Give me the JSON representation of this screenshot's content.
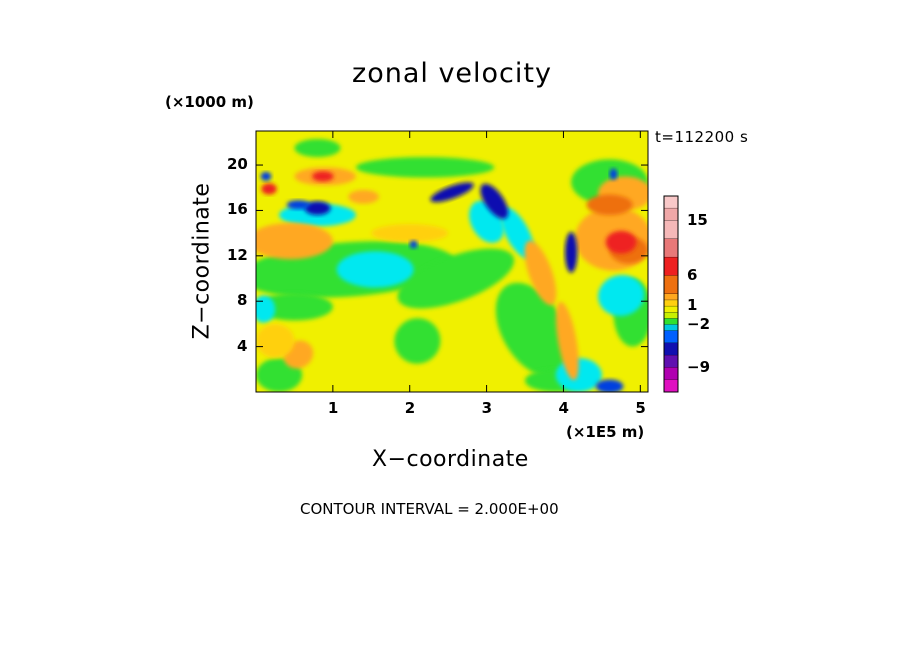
{
  "chart_data": {
    "type": "heatmap",
    "title": "zonal velocity",
    "xlabel": "X−coordinate",
    "ylabel": "Z−coordinate",
    "x_unit_label": "(×1E5 m)",
    "z_unit_label": "(×1000 m)",
    "time_label": "t=112200 s",
    "contour_interval_label": "CONTOUR INTERVAL = 2.000E+00",
    "xlim": [
      0,
      5.1
    ],
    "ylim": [
      0,
      23
    ],
    "x_ticks": [
      1,
      2,
      3,
      4,
      5
    ],
    "z_ticks": [
      4,
      8,
      12,
      16,
      20
    ],
    "colorbar": {
      "levels": [
        {
          "value": 19,
          "color": "#f8c8c8"
        },
        {
          "value": 17,
          "color": "#f0a8a8"
        },
        {
          "value": 15,
          "color": "#f5b8b8"
        },
        {
          "value": 12,
          "color": "#e87878"
        },
        {
          "value": 9,
          "color": "#ee2020"
        },
        {
          "value": 6,
          "color": "#ee7010"
        },
        {
          "value": 3,
          "color": "#ffa820"
        },
        {
          "value": 2,
          "color": "#ffd010"
        },
        {
          "value": 1,
          "color": "#f0f000"
        },
        {
          "value": 0,
          "color": "#c8f000"
        },
        {
          "value": -1,
          "color": "#30e030"
        },
        {
          "value": -2,
          "color": "#00c8e0"
        },
        {
          "value": -3,
          "color": "#0060ff"
        },
        {
          "value": -5,
          "color": "#1010b0"
        },
        {
          "value": -7,
          "color": "#6010b0"
        },
        {
          "value": -9,
          "color": "#b000b0"
        },
        {
          "value": -11,
          "color": "#e010c0"
        },
        {
          "value": -13,
          "color": "#ff20b0"
        }
      ],
      "tick_labels": [
        "15",
        "6",
        "1",
        "−2",
        "−9"
      ],
      "tick_values": [
        15,
        6,
        1,
        -2,
        -9
      ]
    },
    "field_colors": {
      "yellow": "#f0f000",
      "green": "#30e030",
      "cyan": "#00e8f0",
      "orange": "#ffa820",
      "gold": "#ffd010",
      "red": "#ee2020",
      "blue": "#0040e0",
      "navy": "#1010b0",
      "darkorange": "#ee7010"
    },
    "features": [
      {
        "name": "yellow-band-top",
        "color": "yellow",
        "x": [
          0,
          5.1
        ],
        "z": [
          20.5,
          23
        ]
      },
      {
        "name": "green-layer-mid",
        "color": "green",
        "x": [
          0,
          3.3
        ],
        "z": [
          8.5,
          13
        ]
      },
      {
        "name": "cyan-patch-mid",
        "color": "cyan",
        "x": [
          1.1,
          2.1
        ],
        "z": [
          9.5,
          12.5
        ]
      },
      {
        "name": "cyan-patch-upper",
        "color": "cyan",
        "x": [
          0.3,
          1.3
        ],
        "z": [
          14.5,
          16.5
        ]
      },
      {
        "name": "orange-layer-left",
        "color": "orange",
        "x": [
          0,
          0.7
        ],
        "z": [
          11,
          15
        ]
      },
      {
        "name": "orange-layer-right",
        "color": "orange",
        "x": [
          4.2,
          5.1
        ],
        "z": [
          10.5,
          19.5
        ]
      },
      {
        "name": "blue-jet-left",
        "color": "navy",
        "x": [
          0.6,
          0.95
        ],
        "z": [
          15.5,
          16.8
        ]
      },
      {
        "name": "blue-jet-1",
        "color": "navy",
        "x": [
          2.3,
          2.8
        ],
        "z": [
          17,
          18.5
        ]
      },
      {
        "name": "blue-jet-2",
        "color": "navy",
        "x": [
          2.85,
          3.4
        ],
        "z": [
          15,
          18.5
        ]
      },
      {
        "name": "blue-jet-3",
        "color": "navy",
        "x": [
          4.0,
          4.2
        ],
        "z": [
          10.5,
          14
        ]
      },
      {
        "name": "blue-patch-bottom",
        "color": "blue",
        "x": [
          4.4,
          4.8
        ],
        "z": [
          0,
          1.2
        ]
      },
      {
        "name": "red-spot-left",
        "color": "red",
        "x": [
          0.1,
          0.25
        ],
        "z": [
          17.3,
          18.4
        ]
      },
      {
        "name": "red-spot-upper",
        "color": "red",
        "x": [
          0.75,
          1.0
        ],
        "z": [
          18.5,
          19.5
        ]
      },
      {
        "name": "red-spot-right",
        "color": "red",
        "x": [
          4.5,
          5.1
        ],
        "z": [
          12,
          15
        ]
      }
    ]
  }
}
